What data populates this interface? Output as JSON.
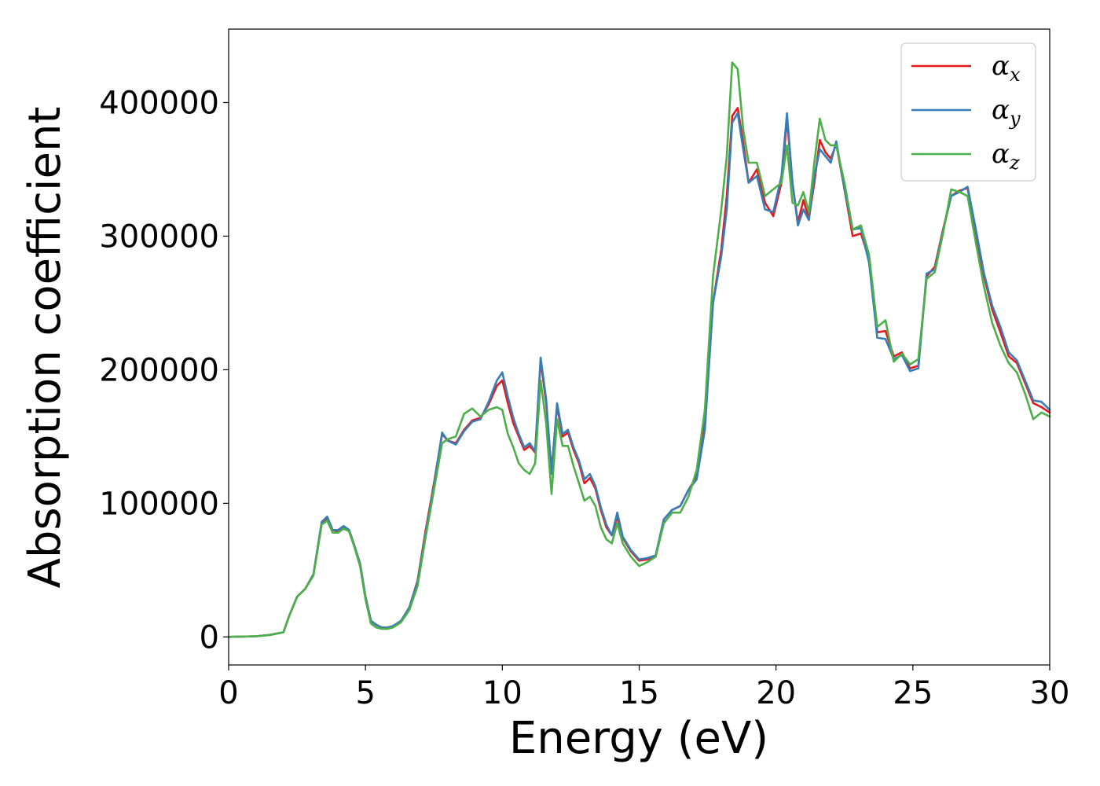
{
  "chart_data": {
    "type": "line",
    "xlabel": "Energy (eV)",
    "ylabel": "Absorption coefficient",
    "xlim": [
      0,
      30
    ],
    "ylim": [
      -21000,
      455000
    ],
    "xticks": [
      "0",
      "5",
      "10",
      "15",
      "20",
      "25",
      "30"
    ],
    "yticks": [
      "0",
      "100000",
      "200000",
      "300000",
      "400000"
    ],
    "grid": false,
    "legend_position": "top-right",
    "x": [
      0,
      1,
      1.5,
      2.0,
      2.2,
      2.5,
      2.8,
      3.1,
      3.4,
      3.6,
      3.8,
      4.0,
      4.2,
      4.4,
      4.6,
      4.8,
      5.0,
      5.2,
      5.4,
      5.6,
      5.8,
      6.0,
      6.3,
      6.6,
      6.9,
      7.2,
      7.5,
      7.8,
      8.0,
      8.3,
      8.6,
      8.9,
      9.2,
      9.5,
      9.8,
      10.0,
      10.2,
      10.4,
      10.6,
      10.8,
      11.0,
      11.2,
      11.4,
      11.6,
      11.8,
      12.0,
      12.2,
      12.4,
      12.6,
      12.8,
      13.0,
      13.2,
      13.4,
      13.6,
      13.8,
      14.0,
      14.2,
      14.4,
      14.7,
      15.0,
      15.3,
      15.6,
      15.9,
      16.2,
      16.5,
      16.8,
      17.1,
      17.4,
      17.7,
      18.0,
      18.2,
      18.4,
      18.6,
      18.8,
      19.0,
      19.3,
      19.6,
      19.9,
      20.2,
      20.4,
      20.6,
      20.8,
      21.0,
      21.2,
      21.4,
      21.6,
      21.8,
      22.0,
      22.2,
      22.5,
      22.8,
      23.1,
      23.4,
      23.7,
      24.0,
      24.3,
      24.6,
      24.9,
      25.2,
      25.5,
      25.8,
      26.1,
      26.4,
      26.7,
      27.0,
      27.3,
      27.6,
      27.9,
      28.2,
      28.5,
      28.8,
      29.1,
      29.4,
      29.7,
      30.0
    ],
    "series": [
      {
        "name": "α_x",
        "label_main": "α",
        "label_sub": "x",
        "color": "#e41a1c",
        "values": [
          0,
          500,
          1500,
          3500,
          15000,
          30000,
          36000,
          47000,
          85000,
          89000,
          80000,
          79000,
          82000,
          80000,
          68000,
          55000,
          30000,
          12000,
          9000,
          7000,
          7000,
          8000,
          12000,
          22000,
          42000,
          80000,
          115000,
          152000,
          147000,
          145000,
          155000,
          162000,
          164000,
          174000,
          188000,
          192000,
          175000,
          160000,
          150000,
          140000,
          143000,
          138000,
          207000,
          175000,
          124000,
          173000,
          150000,
          153000,
          140000,
          130000,
          115000,
          119000,
          111000,
          95000,
          82000,
          76000,
          90000,
          74000,
          64000,
          57000,
          58000,
          60000,
          88000,
          95000,
          98000,
          110000,
          120000,
          160000,
          250000,
          290000,
          330000,
          390000,
          396000,
          370000,
          340000,
          350000,
          325000,
          315000,
          340000,
          388000,
          340000,
          310000,
          327000,
          313000,
          340000,
          372000,
          363000,
          358000,
          369000,
          335000,
          300000,
          302000,
          283000,
          228000,
          229000,
          210000,
          213000,
          201000,
          203000,
          270000,
          277000,
          305000,
          330000,
          334000,
          336000,
          300000,
          270000,
          245000,
          228000,
          210000,
          205000,
          190000,
          175000,
          172000,
          168000
        ]
      },
      {
        "name": "α_y",
        "label_main": "α",
        "label_sub": "y",
        "color": "#377eb8",
        "values": [
          0,
          500,
          1500,
          3500,
          15000,
          30000,
          36000,
          47000,
          86000,
          90000,
          80000,
          80000,
          83000,
          80000,
          68000,
          55000,
          30000,
          12000,
          9000,
          7000,
          7000,
          8000,
          12000,
          22000,
          41000,
          78000,
          113000,
          153000,
          147000,
          144000,
          154000,
          161000,
          163000,
          176000,
          192000,
          198000,
          180000,
          164000,
          152000,
          142000,
          145000,
          139000,
          209000,
          178000,
          122000,
          175000,
          152000,
          155000,
          142000,
          132000,
          118000,
          122000,
          113000,
          97000,
          84000,
          76000,
          93000,
          75000,
          65000,
          58000,
          59000,
          61000,
          88000,
          95000,
          98000,
          110000,
          118000,
          155000,
          250000,
          285000,
          320000,
          385000,
          392000,
          365000,
          340000,
          345000,
          320000,
          318000,
          345000,
          392000,
          340000,
          308000,
          320000,
          312000,
          345000,
          365000,
          360000,
          355000,
          371000,
          335000,
          305000,
          306000,
          280000,
          224000,
          223000,
          208000,
          211000,
          199000,
          201000,
          272000,
          275000,
          304000,
          330000,
          333000,
          337000,
          305000,
          272000,
          248000,
          232000,
          213000,
          207000,
          192000,
          177000,
          176000,
          170000
        ]
      },
      {
        "name": "α_z",
        "label_main": "α",
        "label_sub": "z",
        "color": "#4daf4a",
        "values": [
          0,
          500,
          1500,
          3500,
          15000,
          30000,
          36000,
          46000,
          84000,
          87000,
          78000,
          78000,
          81000,
          79000,
          67000,
          53000,
          28000,
          10000,
          7000,
          6000,
          6000,
          7000,
          11000,
          20000,
          38000,
          75000,
          110000,
          145000,
          148000,
          150000,
          167000,
          171000,
          165000,
          170000,
          172000,
          170000,
          152000,
          142000,
          130000,
          125000,
          122000,
          130000,
          192000,
          160000,
          107000,
          163000,
          143000,
          143000,
          128000,
          115000,
          102000,
          105000,
          98000,
          82000,
          73000,
          70000,
          85000,
          70000,
          60000,
          53000,
          56000,
          60000,
          85000,
          93000,
          93000,
          105000,
          125000,
          170000,
          270000,
          320000,
          360000,
          430000,
          425000,
          380000,
          355000,
          355000,
          330000,
          335000,
          340000,
          368000,
          325000,
          323000,
          333000,
          318000,
          355000,
          388000,
          372000,
          368000,
          368000,
          340000,
          305000,
          308000,
          286000,
          232000,
          237000,
          206000,
          212000,
          204000,
          208000,
          268000,
          273000,
          302000,
          335000,
          333000,
          330000,
          295000,
          262000,
          235000,
          218000,
          205000,
          198000,
          182000,
          163000,
          168000,
          165000
        ]
      }
    ]
  }
}
